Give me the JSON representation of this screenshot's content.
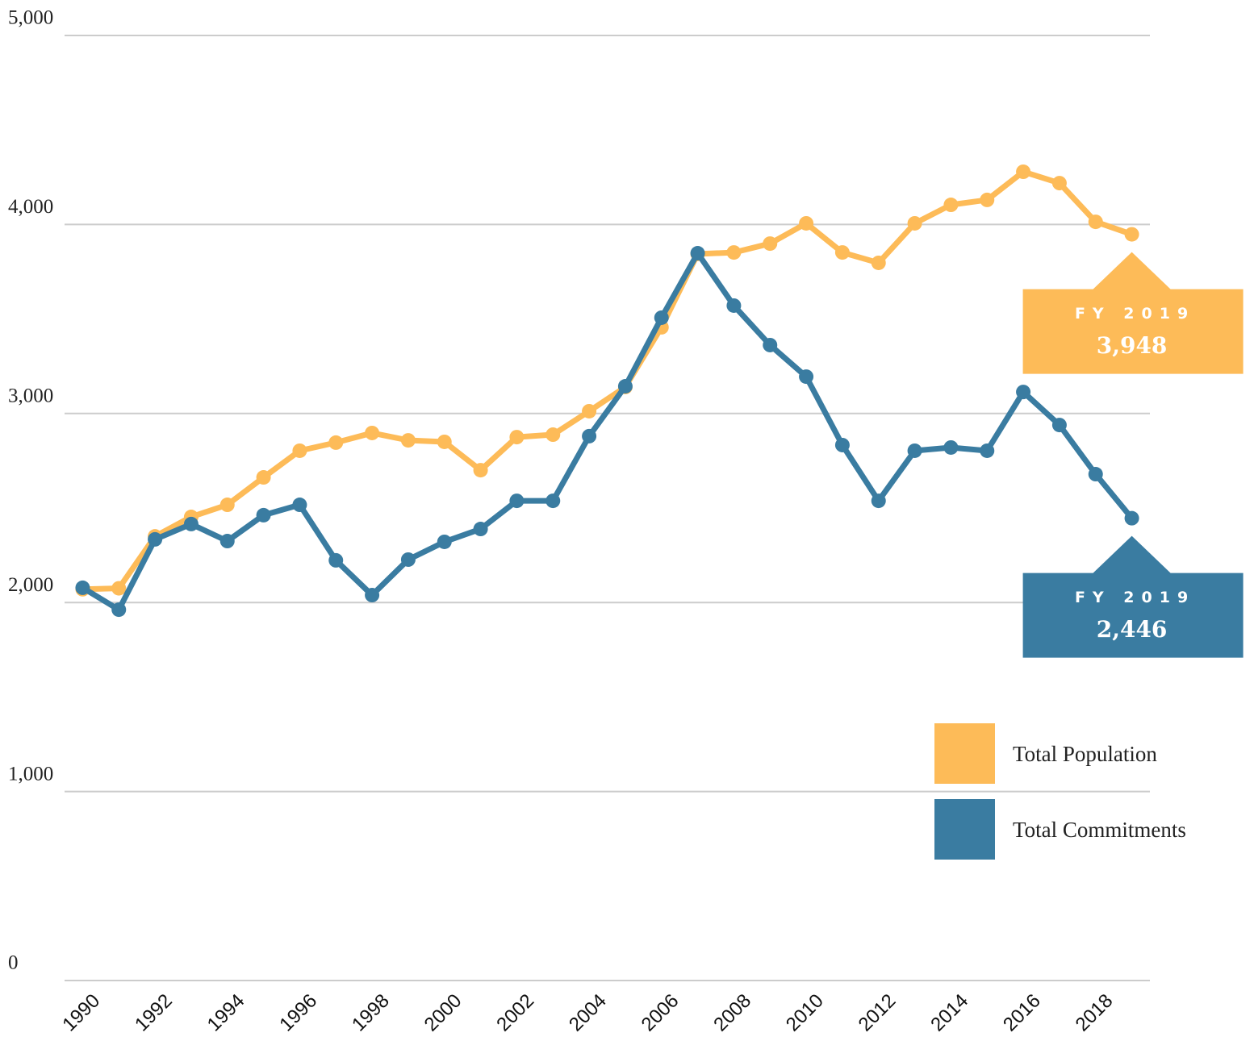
{
  "chart_data": {
    "type": "line",
    "x": [
      1990,
      1991,
      1992,
      1993,
      1994,
      1995,
      1996,
      1997,
      1998,
      1999,
      2000,
      2001,
      2002,
      2003,
      2004,
      2005,
      2006,
      2007,
      2008,
      2009,
      2010,
      2011,
      2012,
      2013,
      2014,
      2015,
      2016,
      2017,
      2018,
      2019
    ],
    "series": [
      {
        "name": "Total Population",
        "color": "#fdbb58",
        "annotation": "FY 2019",
        "values": [
          2070,
          2075,
          2350,
          2453,
          2517,
          2662,
          2803,
          2846,
          2897,
          2858,
          2850,
          2700,
          2875,
          2888,
          3012,
          3140,
          3456,
          3844,
          3852,
          3899,
          4006,
          3852,
          3797,
          4006,
          4104,
          4130,
          4279,
          4219,
          4014,
          3948
        ],
        "value_labels": [
          null,
          null,
          null,
          null,
          null,
          null,
          null,
          null,
          null,
          null,
          null,
          null,
          null,
          null,
          null,
          null,
          null,
          null,
          null,
          null,
          null,
          null,
          null,
          null,
          null,
          null,
          null,
          null,
          null,
          "3,948"
        ]
      },
      {
        "name": "Total Commitments",
        "color": "#3a7ca1",
        "annotation": "FY 2019",
        "values": [
          2078,
          1962,
          2334,
          2415,
          2325,
          2462,
          2517,
          2223,
          2039,
          2227,
          2321,
          2389,
          2538,
          2538,
          2880,
          3144,
          3507,
          3848,
          3571,
          3362,
          3195,
          2833,
          2538,
          2803,
          2820,
          2803,
          3114,
          2939,
          2679,
          2446
        ],
        "value_labels": [
          null,
          null,
          null,
          null,
          null,
          null,
          null,
          null,
          null,
          null,
          null,
          null,
          null,
          null,
          null,
          null,
          null,
          null,
          null,
          null,
          null,
          null,
          null,
          null,
          null,
          null,
          null,
          null,
          null,
          "2,446"
        ]
      }
    ],
    "xlim": [
      1989.5,
      2019.5
    ],
    "xticks": [
      1990,
      1992,
      1994,
      1996,
      1998,
      2000,
      2002,
      2004,
      2006,
      2008,
      2010,
      2012,
      2014,
      2016,
      2018
    ],
    "ylim": [
      0,
      5000
    ],
    "yticks": [
      0,
      {
        "value": 1000,
        "label": "1,000"
      },
      {
        "value": 2000,
        "label": "2,000"
      },
      {
        "value": 3000,
        "label": "3,000"
      },
      {
        "value": 4000,
        "label": "4,000"
      },
      {
        "value": 5000,
        "label": "5,000"
      }
    ],
    "grid": true,
    "legend": "lower right"
  }
}
